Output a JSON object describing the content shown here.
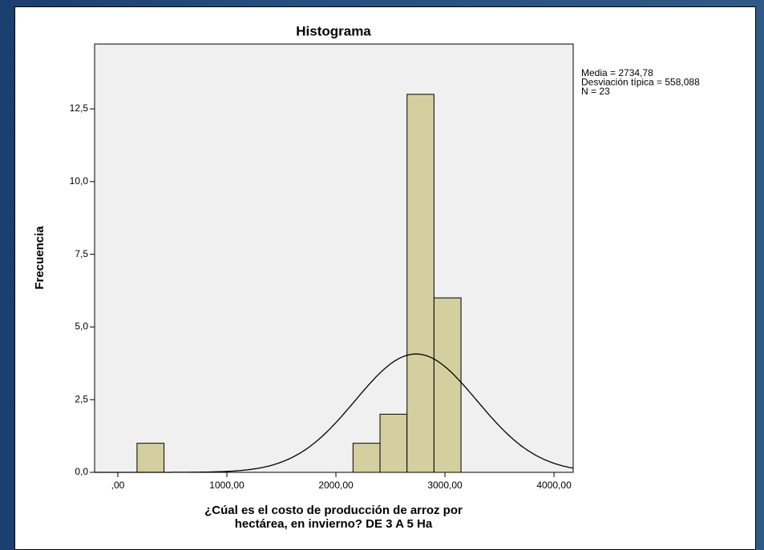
{
  "chart_data": {
    "type": "histogram",
    "title": "Histograma",
    "xlabel": [
      "¿Cúal es el costo de producción de arroz por",
      "hectárea, en invierno?  DE 3 A 5 Ha"
    ],
    "ylabel": "Frecuencia",
    "bins": [
      176,
      423.6,
      671.2,
      918.8,
      1166.4,
      1414,
      1661.6,
      1909.2,
      2156.8,
      2404.4,
      2652,
      2899.6,
      3147.2
    ],
    "counts": [
      1,
      0,
      0,
      0,
      0,
      0,
      0,
      0,
      1,
      2,
      13,
      6
    ],
    "color": "#d4cf9f",
    "xlim": [
      -213,
      4176
    ],
    "xticks": [
      {
        "value": 0,
        "label": ",00"
      },
      {
        "value": 1000,
        "label": "1000,00"
      },
      {
        "value": 2000,
        "label": "2000,00"
      },
      {
        "value": 3000,
        "label": "3000,00"
      },
      {
        "value": 4000,
        "label": "4000,00"
      }
    ],
    "ylim": [
      0,
      14.73
    ],
    "yticks": [
      {
        "value": 0,
        "label": "0,0"
      },
      {
        "value": 2.5,
        "label": "2,5"
      },
      {
        "value": 5,
        "label": "5,0"
      },
      {
        "value": 7.5,
        "label": "7,5"
      },
      {
        "value": 10,
        "label": "10,0"
      },
      {
        "value": 12.5,
        "label": "12,5"
      }
    ],
    "stats": [
      {
        "value": 2734.78,
        "label": "Media = 2734,78"
      },
      {
        "value": 558.088,
        "label": "Desviación típica = 558,088"
      },
      {
        "value": 23,
        "label": "N = 23"
      }
    ],
    "normal_curve": true
  }
}
